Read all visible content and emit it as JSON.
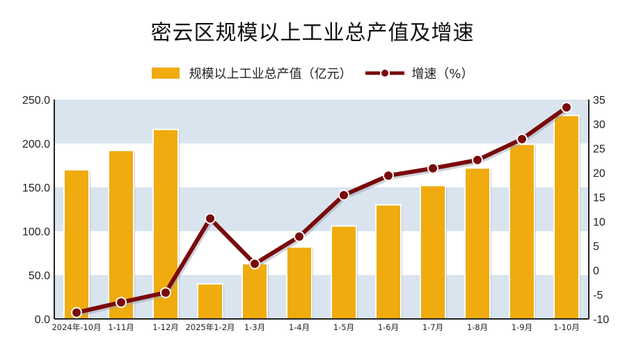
{
  "chart_data": {
    "type": "bar+line",
    "title": "密云区规模以上工业总产值及增速",
    "categories": [
      "2024年-10月",
      "1-11月",
      "1-12月",
      "2025年1-2月",
      "1-3月",
      "1-4月",
      "1-5月",
      "1-6月",
      "1-7月",
      "1-8月",
      "1-9月",
      "1-10月"
    ],
    "series": [
      {
        "name": "规模以上工业总产值（亿元）",
        "type": "bar",
        "axis": "left",
        "color": "#f0ab0f",
        "values": [
          170.0,
          192.0,
          216.0,
          40.0,
          63.0,
          82.0,
          106.0,
          130.0,
          152.0,
          172.0,
          199.0,
          232.0
        ]
      },
      {
        "name": "增速（%）",
        "type": "line",
        "axis": "right",
        "color": "#7a0a0a",
        "values": [
          -8.7,
          -6.6,
          -4.6,
          10.6,
          1.3,
          6.9,
          15.4,
          19.4,
          20.9,
          22.6,
          26.9,
          33.4
        ]
      }
    ],
    "left_axis": {
      "ylim": [
        0,
        250
      ],
      "ticks": [
        "0.0",
        "50.0",
        "100.0",
        "150.0",
        "200.0",
        "250.0"
      ]
    },
    "right_axis": {
      "ylim": [
        -10,
        35
      ],
      "ticks": [
        "-10",
        "-5",
        "0",
        "5",
        "10",
        "15",
        "20",
        "25",
        "30",
        "35"
      ]
    },
    "legend_position": "top",
    "band_color": "#d9e4ef"
  }
}
